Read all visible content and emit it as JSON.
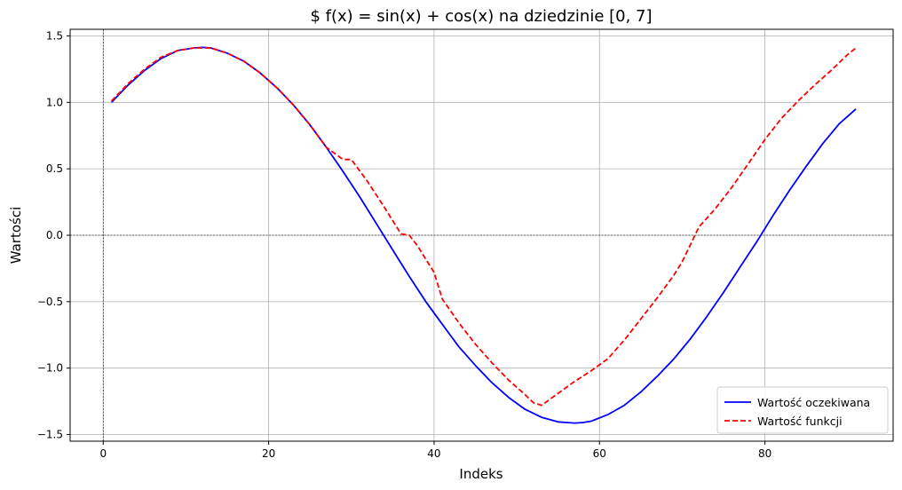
{
  "chart_data": {
    "type": "line",
    "title": "$ f(x) = sin(x) + cos(x) na dziedzinie [0, 7]",
    "xlabel": "Indeks",
    "ylabel": "Wartości",
    "xlim": [
      -4,
      95.5
    ],
    "ylim": [
      -1.55,
      1.55
    ],
    "xticks": [
      0,
      20,
      40,
      60,
      80
    ],
    "yticks": [
      -1.5,
      -1.0,
      -0.5,
      0.0,
      0.5,
      1.0,
      1.5
    ],
    "ytick_labels": [
      "−1.5",
      "−1.0",
      "−0.5",
      "0.0",
      "0.5",
      "1.0",
      "1.5"
    ],
    "grid": true,
    "reference_lines": {
      "x": 0,
      "y": 0
    },
    "legend_position": "lower-right",
    "series": [
      {
        "name": "Wartość oczekiwana",
        "color": "#0000ff",
        "style": "solid",
        "x": [
          1,
          3,
          5,
          7,
          9,
          11,
          12,
          13,
          15,
          17,
          19,
          21,
          23,
          25,
          27,
          29,
          31,
          33,
          35,
          37,
          39,
          41,
          43,
          45,
          47,
          49,
          51,
          53,
          55,
          57,
          58,
          59,
          61,
          63,
          65,
          67,
          69,
          71,
          73,
          75,
          77,
          79,
          81,
          83,
          85,
          87,
          89,
          91
        ],
        "y": [
          1.0,
          1.13,
          1.24,
          1.33,
          1.39,
          1.41,
          1.414,
          1.41,
          1.37,
          1.31,
          1.22,
          1.11,
          0.98,
          0.83,
          0.66,
          0.48,
          0.29,
          0.09,
          -0.11,
          -0.31,
          -0.5,
          -0.67,
          -0.84,
          -0.98,
          -1.11,
          -1.22,
          -1.31,
          -1.37,
          -1.405,
          -1.414,
          -1.41,
          -1.4,
          -1.35,
          -1.28,
          -1.18,
          -1.06,
          -0.93,
          -0.78,
          -0.61,
          -0.43,
          -0.24,
          -0.05,
          0.15,
          0.34,
          0.52,
          0.69,
          0.84,
          0.95
        ]
      },
      {
        "name": "Wartość funkcji",
        "color": "#ff0000",
        "style": "dashed",
        "x": [
          1,
          3,
          5,
          7,
          9,
          11,
          12,
          13,
          15,
          17,
          19,
          21,
          23,
          25,
          27,
          29,
          30,
          32,
          34,
          36,
          37,
          38,
          40,
          41,
          43,
          45,
          47,
          49,
          51,
          52,
          53,
          55,
          57,
          59,
          61,
          63,
          65,
          67,
          69,
          70,
          72,
          74,
          76,
          78,
          80,
          82,
          84,
          86,
          88,
          90,
          91
        ],
        "y": [
          1.01,
          1.14,
          1.25,
          1.34,
          1.39,
          1.41,
          1.41,
          1.41,
          1.37,
          1.31,
          1.22,
          1.11,
          0.98,
          0.83,
          0.66,
          0.57,
          0.57,
          0.4,
          0.21,
          0.01,
          0.0,
          -0.08,
          -0.28,
          -0.48,
          -0.66,
          -0.82,
          -0.96,
          -1.09,
          -1.2,
          -1.26,
          -1.28,
          -1.19,
          -1.1,
          -1.02,
          -0.93,
          -0.79,
          -0.63,
          -0.47,
          -0.3,
          -0.2,
          0.06,
          0.2,
          0.36,
          0.54,
          0.72,
          0.88,
          1.01,
          1.13,
          1.24,
          1.36,
          1.41
        ]
      }
    ]
  }
}
